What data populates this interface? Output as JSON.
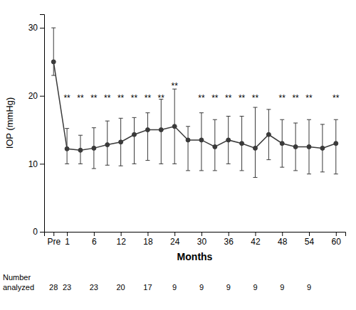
{
  "chart_data": {
    "type": "line",
    "xlabel": "Months",
    "ylabel": "IOP (mmHg)",
    "categories": [
      "Pre",
      "1",
      null,
      "6",
      null,
      "12",
      null,
      "18",
      null,
      "24",
      null,
      "30",
      null,
      "36",
      null,
      "42",
      null,
      "48",
      null,
      "54",
      null,
      "60"
    ],
    "series": [
      {
        "color": "#3a3a3a",
        "marker": "circle",
        "line_style": "solid",
        "values": [
          25.0,
          12.2,
          12.0,
          12.3,
          12.8,
          13.2,
          14.3,
          15.0,
          15.0,
          15.5,
          13.5,
          13.5,
          12.5,
          13.5,
          13.0,
          12.3,
          14.3,
          13.0,
          12.5,
          12.5,
          12.3,
          13.0
        ],
        "error_upper": [
          5.0,
          3.0,
          2.2,
          3.0,
          3.5,
          3.5,
          2.5,
          2.5,
          4.5,
          5.5,
          2.0,
          4.0,
          4.0,
          3.5,
          4.0,
          6.0,
          3.7,
          3.5,
          3.5,
          4.0,
          3.5,
          3.5
        ],
        "error_lower": [
          2.0,
          2.2,
          2.0,
          3.0,
          3.0,
          3.5,
          4.3,
          4.5,
          5.0,
          5.5,
          4.5,
          4.5,
          3.5,
          3.5,
          4.0,
          4.3,
          3.7,
          3.5,
          3.5,
          4.0,
          3.5,
          4.5
        ]
      }
    ],
    "annotations": [
      {
        "text": "**",
        "x": 1,
        "y": 19.2
      },
      {
        "text": "**",
        "x": 2,
        "y": 19.2
      },
      {
        "text": "**",
        "x": 3,
        "y": 19.2
      },
      {
        "text": "**",
        "x": 4,
        "y": 19.2
      },
      {
        "text": "**",
        "x": 5,
        "y": 19.2
      },
      {
        "text": "**",
        "x": 6,
        "y": 19.2
      },
      {
        "text": "**",
        "x": 7,
        "y": 19.2
      },
      {
        "text": "**",
        "x": 8,
        "y": 19.2
      },
      {
        "text": "**",
        "x": 9,
        "y": 21.0
      },
      {
        "text": "**",
        "x": 11,
        "y": 19.2
      },
      {
        "text": "**",
        "x": 12,
        "y": 19.2
      },
      {
        "text": "**",
        "x": 13,
        "y": 19.2
      },
      {
        "text": "**",
        "x": 14,
        "y": 19.2
      },
      {
        "text": "**",
        "x": 15,
        "y": 19.2
      },
      {
        "text": "**",
        "x": 17,
        "y": 19.2
      },
      {
        "text": "**",
        "x": 18,
        "y": 19.2
      },
      {
        "text": "**",
        "x": 19,
        "y": 19.2
      },
      {
        "text": "**",
        "x": 21,
        "y": 19.2
      }
    ],
    "number_analyzed": {
      "label": "Number\nanalyzed",
      "values": [
        28,
        23,
        null,
        23,
        null,
        20,
        null,
        17,
        null,
        9,
        null,
        9,
        null,
        9,
        null,
        9,
        null,
        9,
        null,
        9,
        null,
        null
      ]
    },
    "ylim": [
      0,
      32
    ],
    "yticks": [
      0,
      10,
      20,
      30
    ],
    "grid": false
  }
}
